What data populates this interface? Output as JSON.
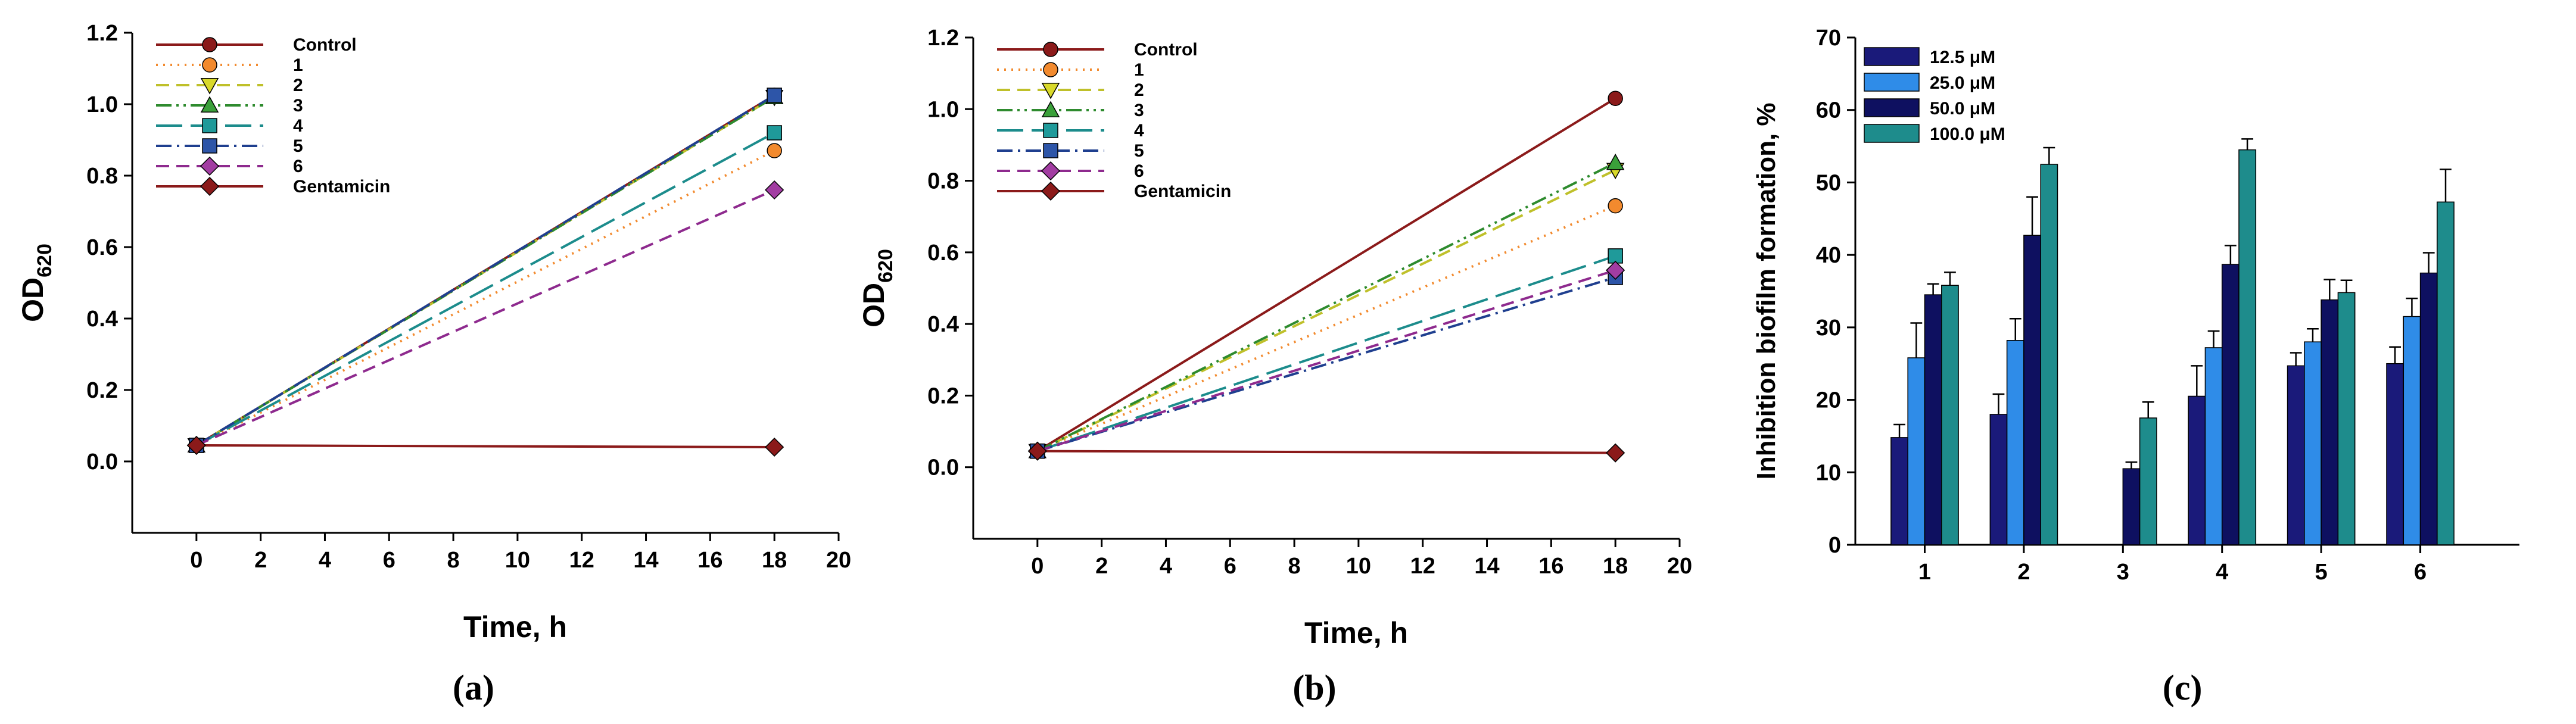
{
  "figure": {
    "panels": [
      "(a)",
      "(b)",
      "(c)"
    ]
  },
  "chart_data": [
    {
      "type": "line",
      "panel_label": "(a)",
      "xlabel": "Time, h",
      "ylabel": "OD",
      "ylabel_subscript": "620",
      "xlim": [
        -2,
        20
      ],
      "ylim": [
        -0.2,
        1.2
      ],
      "x_ticks": [
        "0",
        "2",
        "4",
        "6",
        "8",
        "10",
        "12",
        "14",
        "16",
        "18",
        "20"
      ],
      "y_ticks": [
        "0.0",
        "0.2",
        "0.4",
        "0.6",
        "0.8",
        "1.0",
        "1.2"
      ],
      "legend_position": "top-left",
      "series": [
        {
          "name": "Control",
          "x": [
            0,
            18
          ],
          "values": [
            0.045,
            1.025
          ],
          "color": "#8B1A1A",
          "marker": "circle",
          "marker_fill": "#8B1A1A",
          "dash": "solid"
        },
        {
          "name": "1",
          "x": [
            0,
            18
          ],
          "values": [
            0.045,
            0.87
          ],
          "color": "#F28A2E",
          "marker": "circle",
          "marker_fill": "#F28A2E",
          "dash": "dotted"
        },
        {
          "name": "2",
          "x": [
            0,
            18
          ],
          "values": [
            0.045,
            1.02
          ],
          "color": "#BFC02A",
          "marker": "triangle-down",
          "marker_fill": "#D9D92A",
          "dash": "dashed"
        },
        {
          "name": "3",
          "x": [
            0,
            18
          ],
          "values": [
            0.045,
            1.02
          ],
          "color": "#2E8B2E",
          "marker": "triangle-up",
          "marker_fill": "#3AA03A",
          "dash": "dashdotdot"
        },
        {
          "name": "4",
          "x": [
            0,
            18
          ],
          "values": [
            0.045,
            0.92
          ],
          "color": "#1C8C8C",
          "marker": "square",
          "marker_fill": "#1F9A9A",
          "dash": "longdash"
        },
        {
          "name": "5",
          "x": [
            0,
            18
          ],
          "values": [
            0.045,
            1.025
          ],
          "color": "#1F3F8F",
          "marker": "square",
          "marker_fill": "#2D55A8",
          "dash": "dashdot"
        },
        {
          "name": "6",
          "x": [
            0,
            18
          ],
          "values": [
            0.045,
            0.76
          ],
          "color": "#8E2A8E",
          "marker": "diamond",
          "marker_fill": "#A23DA2",
          "dash": "dashed"
        },
        {
          "name": "Gentamicin",
          "x": [
            0,
            18
          ],
          "values": [
            0.045,
            0.04
          ],
          "color": "#8B1A1A",
          "marker": "diamond",
          "marker_fill": "#8B1A1A",
          "dash": "solid"
        }
      ]
    },
    {
      "type": "line",
      "panel_label": "(b)",
      "xlabel": "Time, h",
      "ylabel": "OD",
      "ylabel_subscript": "620",
      "xlim": [
        -2,
        20
      ],
      "ylim": [
        -0.2,
        1.2
      ],
      "x_ticks": [
        "0",
        "2",
        "4",
        "6",
        "8",
        "10",
        "12",
        "14",
        "16",
        "18",
        "20"
      ],
      "y_ticks": [
        "0.0",
        "0.2",
        "0.4",
        "0.6",
        "0.8",
        "1.0",
        "1.2"
      ],
      "legend_position": "top-left",
      "series": [
        {
          "name": "Control",
          "x": [
            0,
            18
          ],
          "values": [
            0.045,
            1.03
          ],
          "color": "#8B1A1A",
          "marker": "circle",
          "marker_fill": "#8B1A1A",
          "dash": "solid"
        },
        {
          "name": "1",
          "x": [
            0,
            18
          ],
          "values": [
            0.045,
            0.73
          ],
          "color": "#F28A2E",
          "marker": "circle",
          "marker_fill": "#F28A2E",
          "dash": "dotted"
        },
        {
          "name": "2",
          "x": [
            0,
            18
          ],
          "values": [
            0.045,
            0.83
          ],
          "color": "#BFC02A",
          "marker": "triangle-down",
          "marker_fill": "#D9D92A",
          "dash": "dashed"
        },
        {
          "name": "3",
          "x": [
            0,
            18
          ],
          "values": [
            0.045,
            0.85
          ],
          "color": "#2E8B2E",
          "marker": "triangle-up",
          "marker_fill": "#3AA03A",
          "dash": "dashdotdot"
        },
        {
          "name": "4",
          "x": [
            0,
            18
          ],
          "values": [
            0.045,
            0.59
          ],
          "color": "#1C8C8C",
          "marker": "square",
          "marker_fill": "#1F9A9A",
          "dash": "longdash"
        },
        {
          "name": "5",
          "x": [
            0,
            18
          ],
          "values": [
            0.045,
            0.53
          ],
          "color": "#1F3F8F",
          "marker": "square",
          "marker_fill": "#2D55A8",
          "dash": "dashdot"
        },
        {
          "name": "6",
          "x": [
            0,
            18
          ],
          "values": [
            0.045,
            0.55
          ],
          "color": "#8E2A8E",
          "marker": "diamond",
          "marker_fill": "#A23DA2",
          "dash": "dashed"
        },
        {
          "name": "Gentamicin",
          "x": [
            0,
            18
          ],
          "values": [
            0.045,
            0.04
          ],
          "color": "#8B1A1A",
          "marker": "diamond",
          "marker_fill": "#8B1A1A",
          "dash": "solid"
        }
      ]
    },
    {
      "type": "bar",
      "panel_label": "(c)",
      "xlabel": "",
      "ylabel": "Inhibition biofilm formation, %",
      "xlim": [
        0.3,
        7.0
      ],
      "ylim": [
        0,
        70
      ],
      "categories": [
        "1",
        "2",
        "3",
        "4",
        "5",
        "6"
      ],
      "y_ticks": [
        "0",
        "10",
        "20",
        "30",
        "40",
        "50",
        "60",
        "70"
      ],
      "legend_position": "top-left",
      "series": [
        {
          "name": "12.5 μM",
          "values": [
            14.8,
            18.0,
            0,
            20.5,
            24.7,
            25.0
          ],
          "errors": [
            1.8,
            2.8,
            0,
            4.2,
            1.8,
            2.3
          ],
          "color": "#1A1A7A"
        },
        {
          "name": "25.0 μM",
          "values": [
            25.8,
            28.2,
            0,
            27.2,
            28.0,
            31.5
          ],
          "errors": [
            4.8,
            3.0,
            0,
            2.3,
            1.8,
            2.5
          ],
          "color": "#2F8CE8"
        },
        {
          "name": "50.0 μM",
          "values": [
            34.5,
            42.7,
            10.5,
            38.7,
            33.8,
            37.5
          ],
          "errors": [
            1.5,
            5.3,
            0.9,
            2.6,
            2.8,
            2.8
          ],
          "color": "#0E1060"
        },
        {
          "name": "100.0 μM",
          "values": [
            35.8,
            52.5,
            17.5,
            54.5,
            34.8,
            47.3
          ],
          "errors": [
            1.8,
            2.3,
            2.2,
            1.5,
            1.7,
            4.5
          ],
          "color": "#1E8C8C"
        }
      ]
    }
  ]
}
